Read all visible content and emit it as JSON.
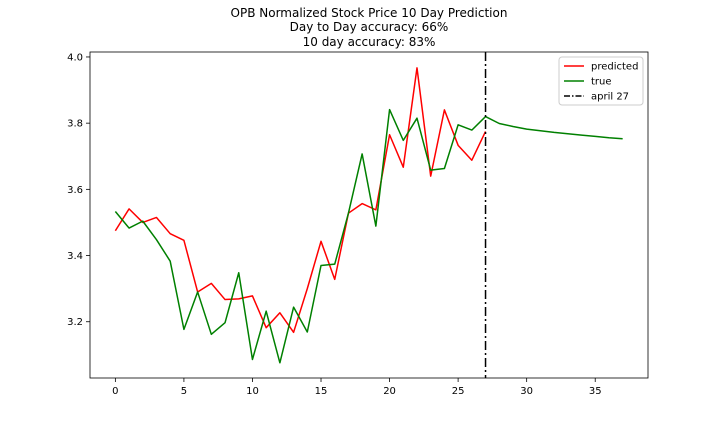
{
  "chart_data": {
    "type": "line",
    "title_lines": [
      "OPB Normalized Stock Price 10 Day Prediction",
      "Day to Day accuracy: 66%",
      "10 day accuracy: 83%"
    ],
    "xlabel": "",
    "ylabel": "",
    "xlim": [
      -1.85,
      38.85
    ],
    "ylim": [
      3.03,
      4.015
    ],
    "xticks": [
      0,
      5,
      10,
      15,
      20,
      25,
      30,
      35
    ],
    "yticks": [
      3.2,
      3.4,
      3.6,
      3.8,
      4.0
    ],
    "ytick_labels": [
      "3.2",
      "3.4",
      "3.6",
      "3.8",
      "4.0"
    ],
    "legend_position": "top-right",
    "series": [
      {
        "name": "predicted",
        "color": "#ff0000",
        "style": "solid",
        "x": [
          0,
          1,
          2,
          3,
          4,
          5,
          6,
          7,
          8,
          9,
          10,
          11,
          12,
          13,
          14,
          15,
          16,
          17,
          18,
          19,
          20,
          21,
          22,
          23,
          24,
          25,
          26,
          27
        ],
        "values": [
          3.475,
          3.541,
          3.5,
          3.515,
          3.466,
          3.446,
          3.29,
          3.316,
          3.267,
          3.269,
          3.278,
          3.182,
          3.227,
          3.168,
          3.3,
          3.443,
          3.328,
          3.528,
          3.557,
          3.538,
          3.765,
          3.667,
          3.967,
          3.64,
          3.84,
          3.733,
          3.688,
          3.775
        ]
      },
      {
        "name": "true",
        "color": "#008000",
        "style": "solid",
        "x": [
          0,
          1,
          2,
          3,
          4,
          5,
          6,
          7,
          8,
          9,
          10,
          11,
          12,
          13,
          14,
          15,
          16,
          17,
          18,
          19,
          20,
          21,
          22,
          23,
          24,
          25,
          26,
          27,
          28,
          29,
          30,
          31,
          32,
          33,
          34,
          35,
          36,
          37
        ],
        "values": [
          3.533,
          3.483,
          3.504,
          3.448,
          3.383,
          3.177,
          3.29,
          3.162,
          3.197,
          3.348,
          3.086,
          3.232,
          3.076,
          3.244,
          3.169,
          3.37,
          3.374,
          3.528,
          3.707,
          3.489,
          3.841,
          3.748,
          3.815,
          3.658,
          3.663,
          3.795,
          3.779,
          3.82,
          3.799,
          3.79,
          3.782,
          3.777,
          3.772,
          3.768,
          3.764,
          3.76,
          3.756,
          3.753
        ]
      }
    ],
    "vline": {
      "name": "april 27",
      "x": 27,
      "color": "#000000",
      "style": "dash-dot"
    }
  }
}
